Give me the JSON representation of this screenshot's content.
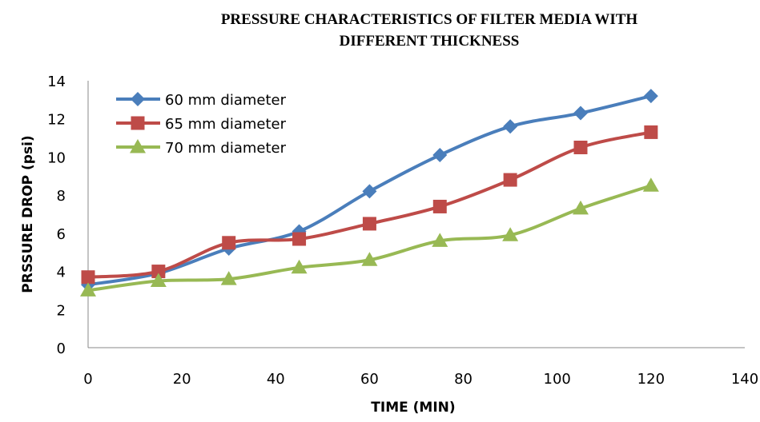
{
  "chart_data": {
    "type": "line",
    "title": "PRESSURE CHARACTERISTICS OF FILTER MEDIA WITH",
    "subtitle": "DIFFERENT THICKNESS",
    "xlabel": "TIME (MIN)",
    "ylabel": "PRSSURE DROP (psi)",
    "xlim": [
      0,
      140
    ],
    "ylim": [
      0,
      14
    ],
    "xticks": [
      0,
      20,
      40,
      60,
      80,
      100,
      120,
      140
    ],
    "yticks": [
      0,
      2,
      4,
      6,
      8,
      10,
      12,
      14
    ],
    "grid": false,
    "legend": "top-left",
    "x": [
      0,
      15,
      30,
      45,
      60,
      75,
      90,
      105,
      120
    ],
    "series": [
      {
        "name": "60 mm diameter",
        "marker": "diamond",
        "color": "#4A7EBB",
        "values": [
          3.3,
          3.9,
          5.2,
          6.1,
          8.2,
          10.1,
          11.6,
          12.3,
          13.2
        ]
      },
      {
        "name": "65 mm diameter",
        "marker": "square",
        "color": "#BE4B48",
        "values": [
          3.7,
          4.0,
          5.5,
          5.7,
          6.5,
          7.4,
          8.8,
          10.5,
          11.3
        ]
      },
      {
        "name": "70 mm diameter",
        "marker": "triangle",
        "color": "#98B954",
        "values": [
          3.0,
          3.5,
          3.6,
          4.2,
          4.6,
          5.6,
          5.9,
          7.3,
          8.5
        ]
      }
    ]
  }
}
